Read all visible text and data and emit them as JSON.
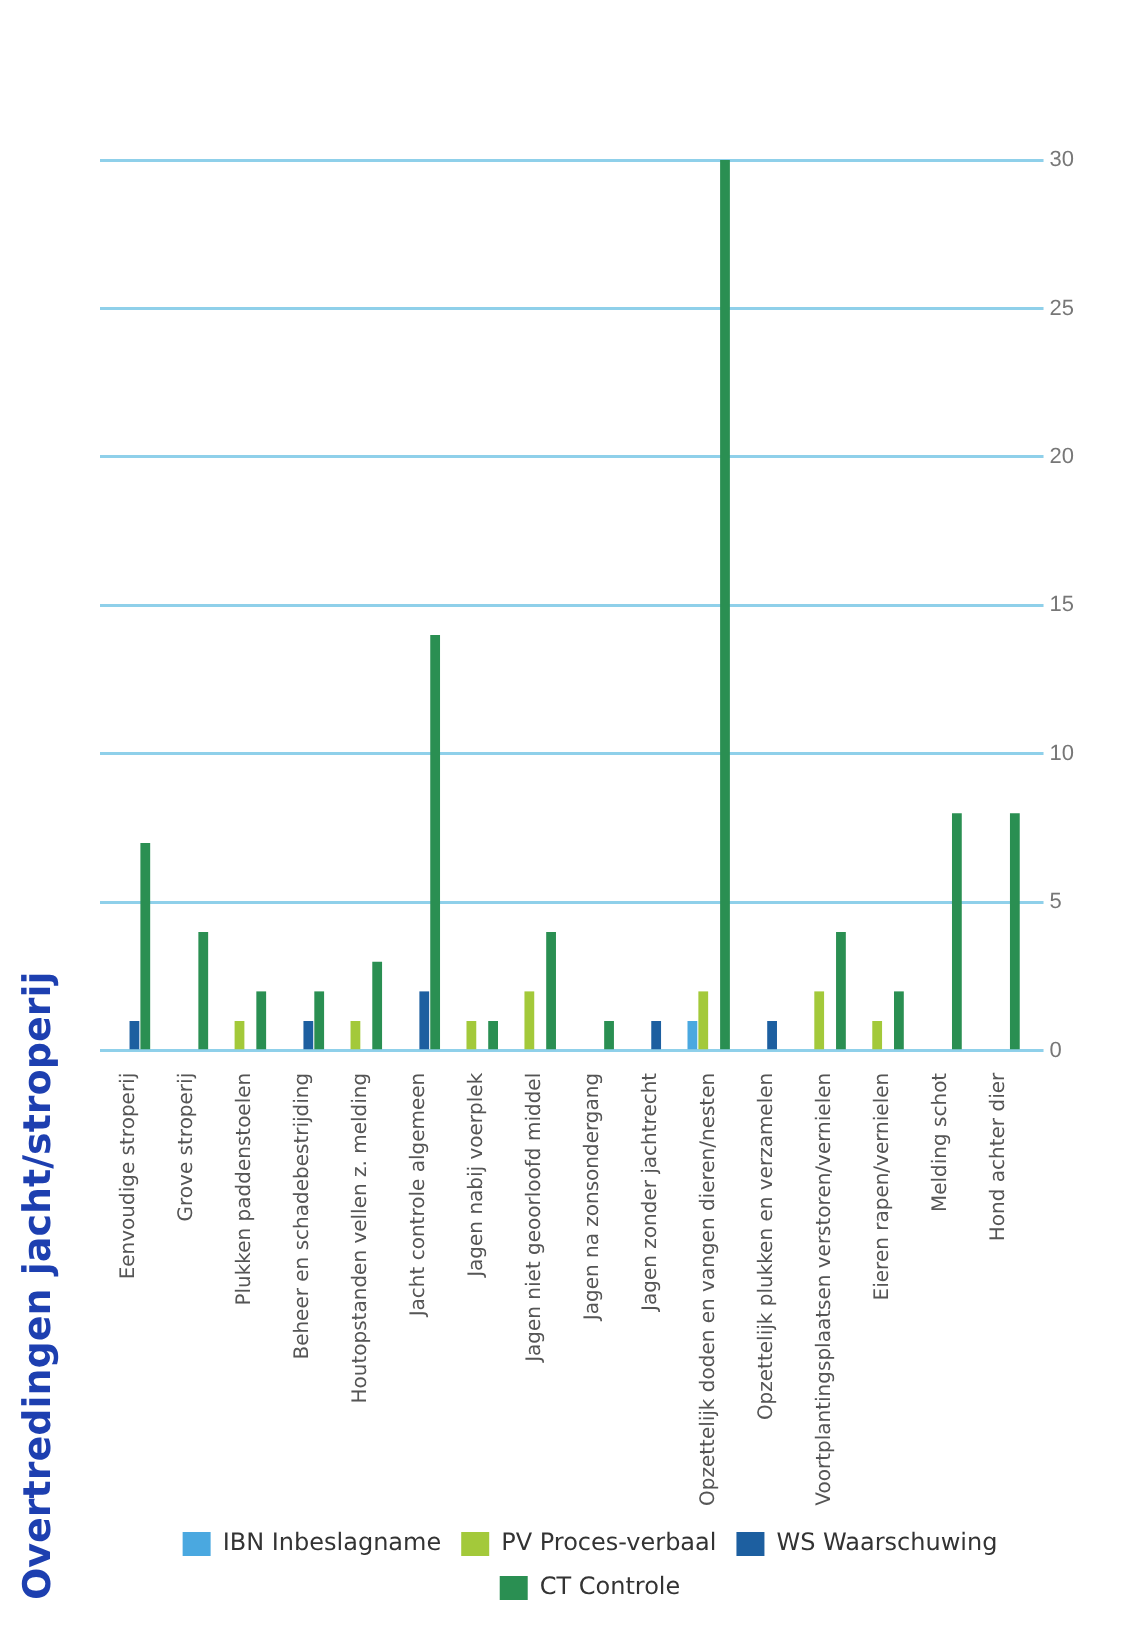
{
  "chart_data": {
    "type": "bar",
    "title": "Overtredingen jacht/stroperij",
    "categories": [
      "Eenvoudige stroperij",
      "Grove stroperij",
      "Plukken paddenstoelen",
      "Beheer en schadebestrijding",
      "Houtopstanden vellen z. melding",
      "Jacht controle algemeen",
      "Jagen nabij voerplek",
      "Jagen niet geoorloofd middel",
      "Jagen na zonsondergang",
      "Jagen zonder jachtrecht",
      "Opzettelijk doden en vangen dieren/nesten",
      "Opzettelijk plukken en verzamelen",
      "Voortplantingsplaatsen verstoren/vernielen",
      "Eieren rapen/vernielen",
      "Melding schot",
      "Hond achter dier"
    ],
    "series": [
      {
        "name": "IBN Inbeslagname",
        "color": "#4aa8e0",
        "values": [
          null,
          null,
          null,
          null,
          null,
          null,
          null,
          null,
          null,
          null,
          1,
          null,
          null,
          null,
          null,
          null
        ]
      },
      {
        "name": "PV Proces-verbaal",
        "color": "#a3c93a",
        "values": [
          null,
          null,
          1,
          null,
          1,
          null,
          1,
          2,
          null,
          null,
          2,
          null,
          2,
          1,
          null,
          null
        ]
      },
      {
        "name": "WS Waarschuwing",
        "color": "#1d5fa0",
        "values": [
          1,
          null,
          null,
          1,
          null,
          2,
          null,
          null,
          null,
          1,
          null,
          1,
          null,
          null,
          null,
          null
        ]
      },
      {
        "name": "CT Controle",
        "color": "#2a8f52",
        "values": [
          7,
          4,
          2,
          2,
          3,
          14,
          1,
          4,
          1,
          null,
          30,
          null,
          4,
          2,
          8,
          8
        ]
      }
    ],
    "ylim": [
      0,
      30
    ],
    "yticks": [
      0,
      5,
      10,
      15,
      20,
      25,
      30
    ],
    "grid": "y",
    "legend": "bottom"
  }
}
